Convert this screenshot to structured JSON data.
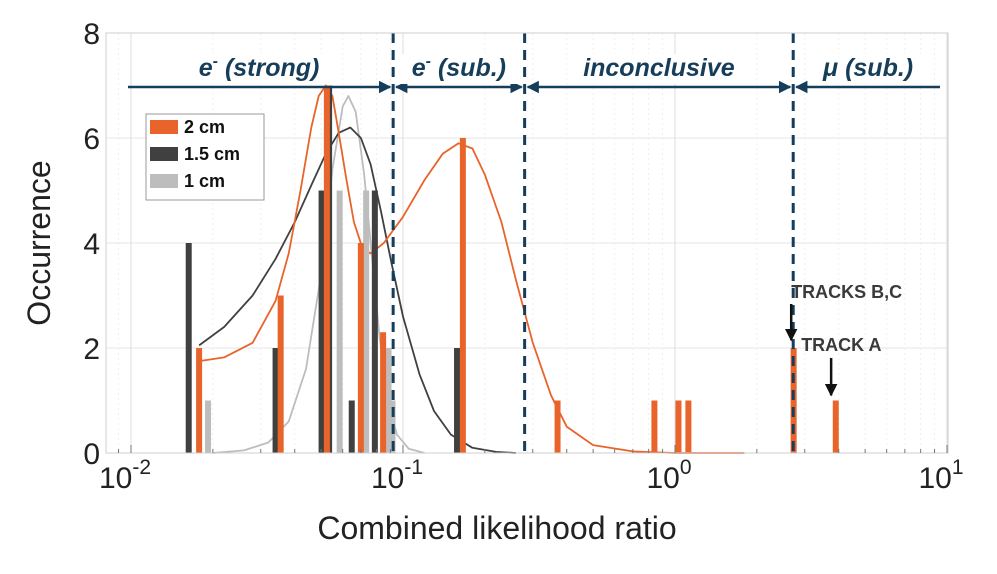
{
  "chart_data": {
    "type": "bar",
    "xscale": "log",
    "xlim": [
      0.008,
      10
    ],
    "ylim": [
      0,
      8
    ],
    "xlabel": "Combined likelihood ratio",
    "ylabel": "Occurrence",
    "x_ticks": [
      {
        "value": 0.01,
        "base": "10",
        "exp": "-2"
      },
      {
        "value": 0.1,
        "base": "10",
        "exp": "-1"
      },
      {
        "value": 1,
        "base": "10",
        "exp": "0"
      },
      {
        "value": 10,
        "base": "10",
        "exp": "1"
      }
    ],
    "y_ticks": [
      0,
      2,
      4,
      6,
      8
    ],
    "grid": true,
    "legend": {
      "placement": "top-left",
      "entries": [
        {
          "label": "2 cm",
          "color": "#e8642a"
        },
        {
          "label": "1.5 cm",
          "color": "#404040"
        },
        {
          "label": "1 cm",
          "color": "#bdbdbd"
        }
      ]
    },
    "series": [
      {
        "name": "2 cm",
        "color": "#e8642a",
        "bars": [
          {
            "x": 0.0178,
            "y": 2
          },
          {
            "x": 0.0355,
            "y": 3
          },
          {
            "x": 0.0525,
            "y": 7
          },
          {
            "x": 0.07,
            "y": 4
          },
          {
            "x": 0.0845,
            "y": 2.3
          },
          {
            "x": 0.166,
            "y": 6
          },
          {
            "x": 0.37,
            "y": 1
          },
          {
            "x": 0.84,
            "y": 1
          },
          {
            "x": 1.03,
            "y": 1
          },
          {
            "x": 1.12,
            "y": 1
          },
          {
            "x": 2.73,
            "y": 2
          },
          {
            "x": 3.9,
            "y": 1
          }
        ],
        "curve": [
          [
            0.0178,
            1.75
          ],
          [
            0.022,
            1.82
          ],
          [
            0.028,
            2.1
          ],
          [
            0.034,
            2.9
          ],
          [
            0.038,
            3.8
          ],
          [
            0.042,
            5.0
          ],
          [
            0.046,
            6.2
          ],
          [
            0.049,
            6.8
          ],
          [
            0.052,
            7.0
          ],
          [
            0.055,
            6.8
          ],
          [
            0.058,
            6.1
          ],
          [
            0.062,
            5.2
          ],
          [
            0.066,
            4.4
          ],
          [
            0.071,
            3.9
          ],
          [
            0.076,
            3.8
          ],
          [
            0.085,
            4.0
          ],
          [
            0.1,
            4.5
          ],
          [
            0.12,
            5.2
          ],
          [
            0.14,
            5.7
          ],
          [
            0.16,
            5.9
          ],
          [
            0.18,
            5.8
          ],
          [
            0.2,
            5.3
          ],
          [
            0.23,
            4.4
          ],
          [
            0.26,
            3.3
          ],
          [
            0.3,
            2.1
          ],
          [
            0.35,
            1.1
          ],
          [
            0.4,
            0.5
          ],
          [
            0.5,
            0.15
          ],
          [
            0.7,
            0.03
          ],
          [
            1.0,
            0.0
          ],
          [
            1.8,
            0.0
          ]
        ]
      },
      {
        "name": "1.5 cm",
        "color": "#404040",
        "bars": [
          {
            "x": 0.0163,
            "y": 4
          },
          {
            "x": 0.034,
            "y": 2
          },
          {
            "x": 0.0502,
            "y": 5
          },
          {
            "x": 0.0535,
            "y": 7
          },
          {
            "x": 0.0648,
            "y": 1
          },
          {
            "x": 0.0788,
            "y": 5
          },
          {
            "x": 0.158,
            "y": 2
          }
        ],
        "curve": [
          [
            0.0178,
            2.05
          ],
          [
            0.022,
            2.4
          ],
          [
            0.028,
            3.0
          ],
          [
            0.034,
            3.7
          ],
          [
            0.04,
            4.4
          ],
          [
            0.046,
            5.1
          ],
          [
            0.052,
            5.7
          ],
          [
            0.058,
            6.1
          ],
          [
            0.064,
            6.2
          ],
          [
            0.07,
            6.0
          ],
          [
            0.076,
            5.5
          ],
          [
            0.083,
            4.6
          ],
          [
            0.09,
            3.7
          ],
          [
            0.1,
            2.6
          ],
          [
            0.115,
            1.5
          ],
          [
            0.13,
            0.8
          ],
          [
            0.15,
            0.35
          ],
          [
            0.18,
            0.1
          ],
          [
            0.22,
            0.02
          ],
          [
            0.26,
            0.0
          ]
        ]
      },
      {
        "name": "1 cm",
        "color": "#bdbdbd",
        "bars": [
          {
            "x": 0.0192,
            "y": 1
          },
          {
            "x": 0.0585,
            "y": 5
          },
          {
            "x": 0.0732,
            "y": 5
          },
          {
            "x": 0.0885,
            "y": 2
          },
          {
            "x": 0.0915,
            "y": 1
          }
        ],
        "curve": [
          [
            0.02,
            0.0
          ],
          [
            0.026,
            0.05
          ],
          [
            0.032,
            0.2
          ],
          [
            0.038,
            0.6
          ],
          [
            0.044,
            1.6
          ],
          [
            0.05,
            3.4
          ],
          [
            0.055,
            5.4
          ],
          [
            0.06,
            6.6
          ],
          [
            0.063,
            6.8
          ],
          [
            0.067,
            6.5
          ],
          [
            0.072,
            5.3
          ],
          [
            0.077,
            3.7
          ],
          [
            0.082,
            2.2
          ],
          [
            0.088,
            1.0
          ],
          [
            0.095,
            0.35
          ],
          [
            0.105,
            0.08
          ],
          [
            0.12,
            0.0
          ]
        ]
      }
    ],
    "thresholds": [
      0.092,
      0.28,
      2.72
    ],
    "regions": [
      {
        "label_main": "e",
        "label_sup": "-",
        "label_rest": " (strong)",
        "from": 0.0085,
        "to": 0.092
      },
      {
        "label_main": "e",
        "label_sup": "-",
        "label_rest": " (sub.)",
        "from": 0.092,
        "to": 0.28
      },
      {
        "label_main": "",
        "label_sup": "",
        "label_rest": "inconclusive",
        "from": 0.28,
        "to": 2.72
      },
      {
        "label_main": "μ",
        "label_sup": "",
        "label_rest": " (sub.)",
        "from": 2.72,
        "to": 10
      }
    ],
    "annotations": [
      {
        "text": "TRACKS B,C",
        "x": 2.72,
        "y_arrow_tip": 2.15
      },
      {
        "text": "TRACK A",
        "x": 3.75,
        "y_arrow_tip": 1.1
      }
    ]
  }
}
